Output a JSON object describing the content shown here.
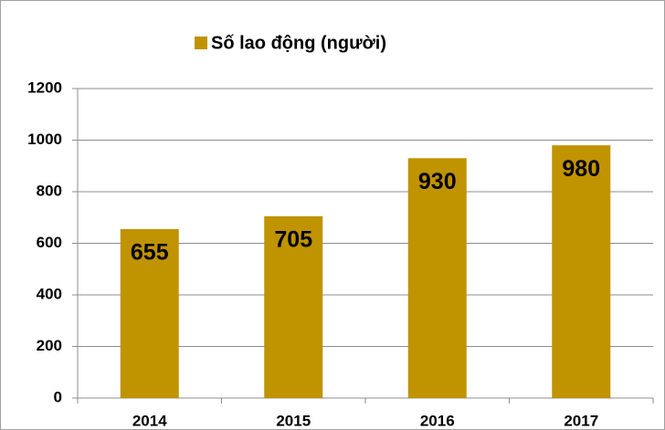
{
  "chart_data": {
    "type": "bar",
    "categories": [
      "2014",
      "2015",
      "2016",
      "2017"
    ],
    "series": [
      {
        "name": "Số lao động (người)",
        "color": "#c09300",
        "values": [
          655,
          705,
          930,
          980
        ]
      }
    ],
    "ylim": [
      0,
      1200
    ],
    "yticks": [
      0,
      200,
      400,
      600,
      800,
      1000,
      1200
    ],
    "grid": true,
    "legend": "top"
  }
}
